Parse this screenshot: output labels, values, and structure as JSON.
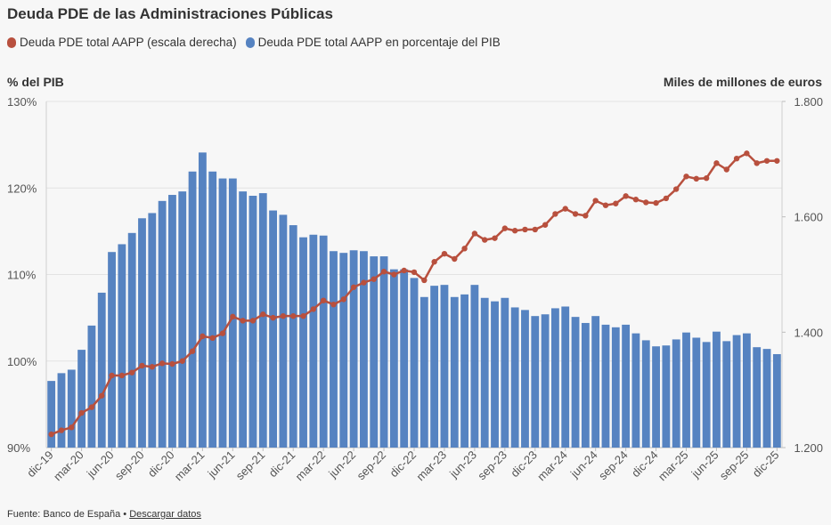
{
  "title": "Deuda PDE de las Administraciones Públicas",
  "footer": {
    "source_label": "Fuente: Banco de España",
    "separator": "•",
    "download_label": "Descargar datos"
  },
  "chart_data": {
    "type": "bar+line",
    "title": "Deuda PDE de las Administraciones Públicas",
    "left_axis_title": "% del PIB",
    "right_axis_title": "Miles de millones de euros",
    "colors": {
      "bars": "#5683c1",
      "line": "#b8503e",
      "grid": "#e3e3e3",
      "text": "#555555"
    },
    "legend": [
      {
        "name": "Deuda PDE total AAPP (escala derecha)",
        "color": "#b8503e"
      },
      {
        "name": "Deuda PDE total AAPP en porcentaje del PIB",
        "color": "#5683c1"
      }
    ],
    "left_axis": {
      "min": 90,
      "max": 130,
      "ticks": [
        90,
        100,
        110,
        120,
        130
      ],
      "tick_labels": [
        "90%",
        "100%",
        "110%",
        "120%",
        "130%"
      ]
    },
    "right_axis": {
      "min": 1200,
      "max": 1800,
      "ticks": [
        1200,
        1400,
        1600,
        1800
      ],
      "tick_labels": [
        "1.200",
        "1.400",
        "1.600",
        "1.800"
      ]
    },
    "x_tick_labels": [
      {
        "index": 0,
        "label": "dic-19"
      },
      {
        "index": 3,
        "label": "mar-20"
      },
      {
        "index": 6,
        "label": "jun-20"
      },
      {
        "index": 9,
        "label": "sep-20"
      },
      {
        "index": 12,
        "label": "dic-20"
      },
      {
        "index": 15,
        "label": "mar-21"
      },
      {
        "index": 18,
        "label": "jun-21"
      },
      {
        "index": 21,
        "label": "sep-21"
      },
      {
        "index": 24,
        "label": "dic-21"
      },
      {
        "index": 27,
        "label": "mar-22"
      },
      {
        "index": 30,
        "label": "jun-22"
      },
      {
        "index": 33,
        "label": "sep-22"
      },
      {
        "index": 36,
        "label": "dic-22"
      },
      {
        "index": 39,
        "label": "mar-23"
      },
      {
        "index": 42,
        "label": "jun-23"
      },
      {
        "index": 45,
        "label": "sep-23"
      },
      {
        "index": 48,
        "label": "dic-23"
      },
      {
        "index": 51,
        "label": "mar-24"
      },
      {
        "index": 54,
        "label": "jun-24"
      },
      {
        "index": 57,
        "label": "sep-24"
      },
      {
        "index": 60,
        "label": "dic-24"
      },
      {
        "index": 63,
        "label": "mar-25"
      },
      {
        "index": 66,
        "label": "jun-25"
      },
      {
        "index": 69,
        "label": "sep-25"
      },
      {
        "index": 72,
        "label": "dic-25"
      }
    ],
    "series": [
      {
        "name": "Deuda PDE total AAPP en porcentaje del PIB",
        "type": "bar",
        "axis": "left",
        "values": [
          97.7,
          98.6,
          99.0,
          101.3,
          104.1,
          107.9,
          112.6,
          113.5,
          114.8,
          116.5,
          117.1,
          118.5,
          119.2,
          119.6,
          121.9,
          124.1,
          121.9,
          121.1,
          121.1,
          119.6,
          119.1,
          119.4,
          117.4,
          116.9,
          115.7,
          114.3,
          114.6,
          114.5,
          112.7,
          112.5,
          112.8,
          112.7,
          112.1,
          112.1,
          110.6,
          110.6,
          109.6,
          107.4,
          108.7,
          108.8,
          107.4,
          107.7,
          108.8,
          107.3,
          106.9,
          107.3,
          106.2,
          105.9,
          105.2,
          105.4,
          106.1,
          106.3,
          105.1,
          104.4,
          105.2,
          104.2,
          103.9,
          104.2,
          103.2,
          102.4,
          101.7,
          101.8,
          102.5,
          103.3,
          102.7,
          102.2,
          103.4,
          102.3,
          103.0,
          103.2,
          101.6,
          101.4,
          100.8
        ]
      },
      {
        "name": "Deuda PDE total AAPP (escala derecha)",
        "type": "line",
        "axis": "right",
        "values": [
          1223,
          1230,
          1235,
          1260,
          1270,
          1290,
          1325,
          1325,
          1330,
          1342,
          1340,
          1346,
          1345,
          1350,
          1367,
          1393,
          1390,
          1398,
          1427,
          1420,
          1420,
          1431,
          1425,
          1428,
          1428,
          1428,
          1440,
          1455,
          1448,
          1457,
          1478,
          1486,
          1492,
          1505,
          1500,
          1507,
          1504,
          1490,
          1522,
          1536,
          1527,
          1545,
          1571,
          1560,
          1563,
          1580,
          1576,
          1578,
          1578,
          1586,
          1605,
          1614,
          1605,
          1602,
          1628,
          1620,
          1623,
          1636,
          1630,
          1625,
          1624,
          1632,
          1648,
          1670,
          1666,
          1667,
          1693,
          1682,
          1701,
          1710,
          1693,
          1697,
          1697
        ]
      }
    ]
  }
}
